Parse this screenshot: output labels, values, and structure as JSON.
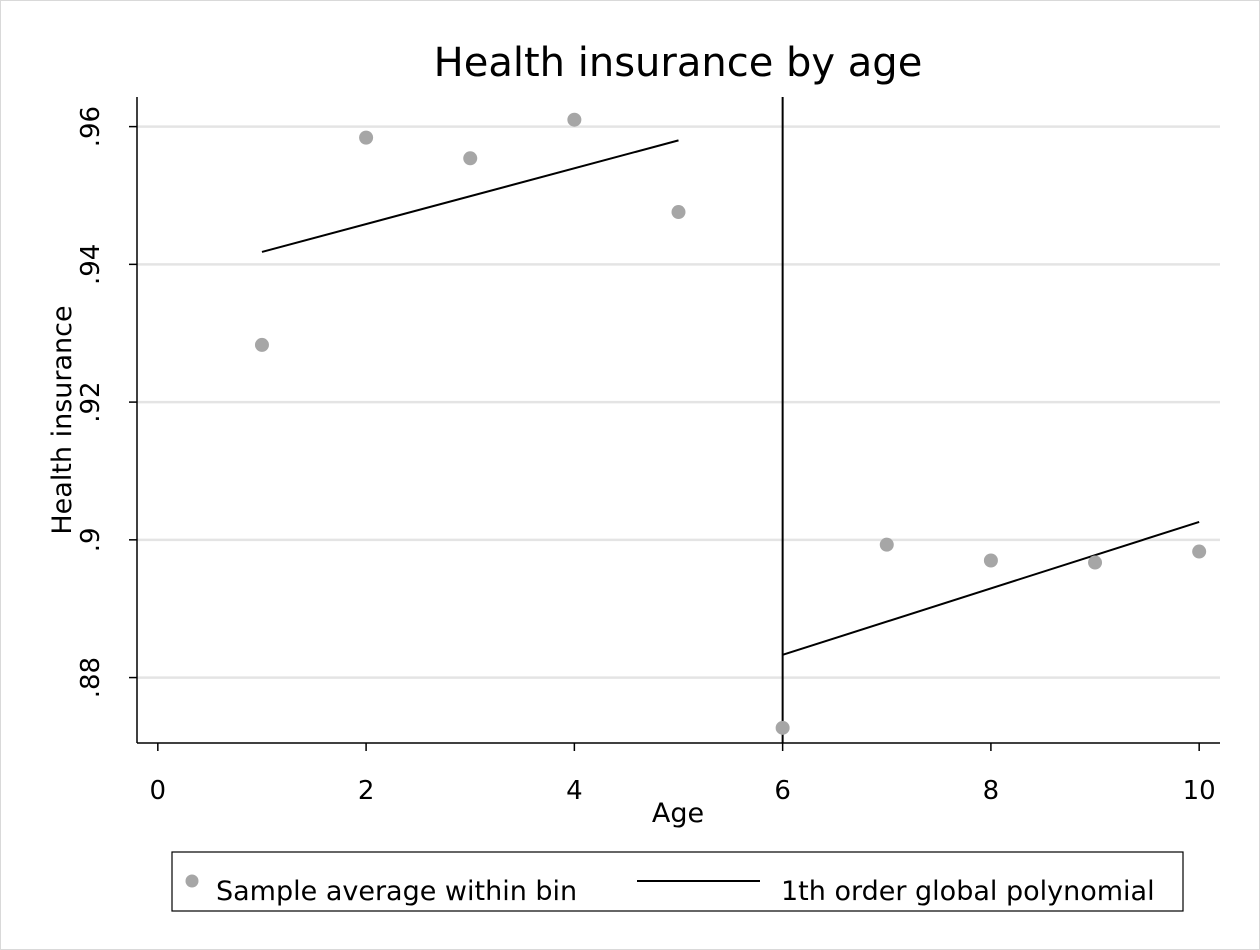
{
  "chart_data": {
    "type": "scatter",
    "title": "Health insurance by age",
    "xlabel": "Age",
    "ylabel": "Health insurance",
    "xlim": [
      -0.2,
      10.2
    ],
    "ylim": [
      0.8705,
      0.9643
    ],
    "x_ticks": [
      0,
      2,
      4,
      6,
      8,
      10
    ],
    "x_tick_labels": [
      "0",
      "2",
      "4",
      "6",
      "8",
      "10"
    ],
    "y_ticks": [
      0.88,
      0.9,
      0.92,
      0.94,
      0.96
    ],
    "y_tick_labels": [
      ".88",
      ".9",
      ".92",
      ".94",
      ".96"
    ],
    "grid": "horizontal",
    "cutoff": 6,
    "legend_position": "bottom",
    "series": [
      {
        "name": "Sample average within bin",
        "kind": "scatter",
        "color": "#a6a6a6",
        "x": [
          1,
          2,
          3,
          4,
          5,
          6,
          7,
          8,
          9,
          10
        ],
        "y": [
          0.9283,
          0.9584,
          0.9554,
          0.961,
          0.9476,
          0.8727,
          0.8993,
          0.897,
          0.8967,
          0.8983
        ]
      },
      {
        "name": "1th order global polynomial",
        "kind": "line",
        "color": "#000000",
        "segments": [
          {
            "x": [
              1,
              5
            ],
            "y": [
              0.9418,
              0.958
            ]
          },
          {
            "x": [
              6,
              10
            ],
            "y": [
              0.8833,
              0.9026
            ]
          }
        ]
      }
    ]
  }
}
